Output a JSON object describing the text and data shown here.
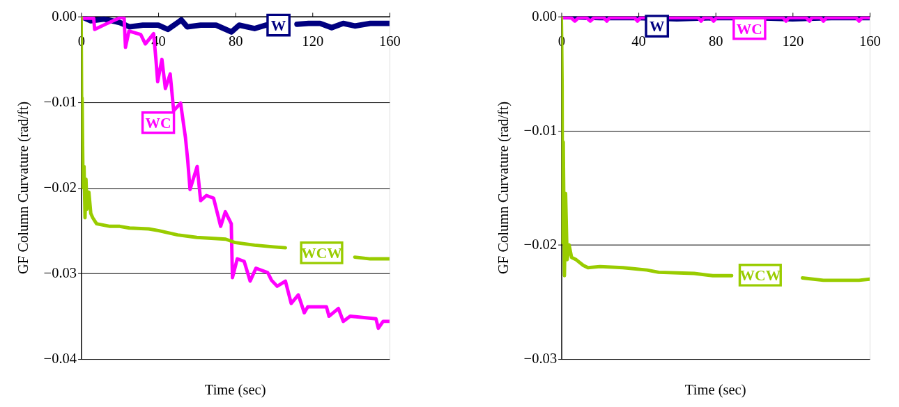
{
  "chart_data": [
    {
      "type": "line",
      "xlabel": "Time (sec)",
      "ylabel": "GF Column Curvature (rad/ft)",
      "xlim": [
        0,
        160
      ],
      "xticks": [
        0,
        40,
        80,
        120,
        160
      ],
      "ylim": [
        -0.04,
        0
      ],
      "yticks": [
        {
          "value": 0,
          "label": "0.00"
        },
        -0.01,
        -0.02,
        -0.03,
        -0.04
      ],
      "grid": "y",
      "legend": false,
      "marker": "none",
      "line_style": "solid",
      "series": [
        {
          "name": "W",
          "color": "#000080",
          "x": [
            0,
            5,
            12,
            20,
            25,
            32,
            40,
            45,
            52,
            55,
            62,
            70,
            78,
            82,
            90,
            96,
            98,
            112,
            118,
            124,
            130,
            136,
            142,
            150,
            160
          ],
          "values": [
            0,
            -0.0005,
            -0.0003,
            -0.0007,
            -0.0012,
            -0.001,
            -0.001,
            -0.0015,
            -0.0004,
            -0.0012,
            -0.001,
            -0.001,
            -0.0018,
            -0.001,
            -0.0014,
            -0.001,
            null,
            -0.0009,
            -0.0008,
            -0.0008,
            -0.0013,
            -0.0008,
            -0.0011,
            -0.0008,
            -0.0008
          ]
        },
        {
          "name": "WC",
          "color": "#ff00ff",
          "x": [
            0,
            0.4,
            6.5,
            7,
            12.6,
            20.5,
            22.3,
            23,
            24.8,
            30.9,
            33.3,
            37.6,
            38.8,
            39.7,
            41.9,
            43.7,
            46.2,
            48,
            51.6,
            54.1,
            55.3,
            56.5,
            60.2,
            62,
            65,
            68.7,
            72.4,
            74.8,
            77.9,
            78.5,
            81,
            84.6,
            87.7,
            90.7,
            96.8,
            98.8,
            101.7,
            106,
            109,
            112.7,
            115.8,
            117.6,
            127.3,
            128.6,
            133.5,
            136,
            139.6,
            153,
            154.2,
            156.7,
            160
          ],
          "values": [
            0,
            -0.0002,
            -0.0002,
            -0.0015,
            -0.0009,
            -0.0001,
            -0.0002,
            -0.0036,
            -0.0017,
            -0.0021,
            -0.0032,
            -0.002,
            -0.005,
            -0.0076,
            -0.005,
            -0.0084,
            -0.0067,
            -0.011,
            -0.0101,
            -0.0141,
            -0.0168,
            -0.0202,
            -0.0175,
            -0.0215,
            -0.0209,
            -0.0212,
            -0.0245,
            -0.0228,
            -0.0242,
            -0.0305,
            -0.0283,
            -0.0286,
            -0.0309,
            -0.0294,
            -0.0299,
            -0.0308,
            -0.0315,
            -0.0309,
            -0.0335,
            -0.0325,
            -0.0346,
            -0.0339,
            -0.0339,
            -0.035,
            -0.0341,
            -0.0356,
            -0.035,
            -0.0353,
            -0.0364,
            -0.0356,
            -0.0356
          ]
        },
        {
          "name": "WCW",
          "color": "#99cc00",
          "x": [
            0,
            0.3,
            0.5,
            1,
            1.5,
            2,
            2.5,
            3,
            4,
            5,
            6,
            8,
            15,
            20,
            25,
            35,
            40,
            50,
            60,
            75,
            80,
            90,
            100,
            106,
            108,
            142,
            150,
            160
          ],
          "values": [
            0,
            -0.012,
            -0.0095,
            -0.02,
            -0.0175,
            -0.0235,
            -0.019,
            -0.0225,
            -0.0205,
            -0.023,
            -0.0235,
            -0.0242,
            -0.0245,
            -0.0245,
            -0.0247,
            -0.0248,
            -0.025,
            -0.0255,
            -0.0258,
            -0.026,
            -0.0264,
            -0.0267,
            -0.0269,
            -0.027,
            null,
            -0.0281,
            -0.0283,
            -0.0283
          ]
        }
      ]
    },
    {
      "type": "line",
      "xlabel": "Time (sec)",
      "ylabel": "GF Column Curvature (rad/ft)",
      "xlim": [
        0,
        160
      ],
      "xticks": [
        0,
        40,
        80,
        120,
        160
      ],
      "ylim": [
        -0.03,
        0
      ],
      "yticks": [
        {
          "value": 0,
          "label": "0.00"
        },
        -0.01,
        -0.02,
        -0.03
      ],
      "grid": "y",
      "legend": false,
      "marker": "none",
      "line_style": "solid",
      "series": [
        {
          "name": "W",
          "color": "#000080",
          "x": [
            0,
            20,
            40,
            60,
            80,
            100,
            120,
            140,
            160
          ],
          "values": [
            0,
            -0.0001,
            -0.0001,
            -0.0002,
            -0.0001,
            -0.0001,
            -0.0002,
            -0.0001,
            -0.0001
          ]
        },
        {
          "name": "WC",
          "color": "#ff00ff",
          "x": [
            0,
            5,
            7,
            9,
            13,
            15,
            17,
            22,
            23.6,
            25,
            38,
            39.5,
            41,
            71,
            72.5,
            74,
            77.5,
            79,
            80.5,
            115,
            116.6,
            118,
            127,
            128.8,
            130,
            134.5,
            136,
            137.5,
            153,
            154.5,
            156,
            160
          ],
          "values": [
            -0.0001,
            -0.0001,
            -0.0004,
            -0.0001,
            -0.0001,
            -0.0004,
            -0.0001,
            -0.0001,
            -0.0004,
            -0.0001,
            -0.0001,
            -0.0004,
            -0.0001,
            -0.0001,
            -0.0004,
            -0.0001,
            -0.0001,
            -0.0004,
            -0.0001,
            -0.0001,
            -0.0004,
            -0.0001,
            -0.0001,
            -0.0004,
            -0.0001,
            -0.0001,
            -0.0004,
            -0.0001,
            -0.0001,
            -0.0004,
            -0.0001,
            -0.0001
          ]
        },
        {
          "name": "WCW",
          "color": "#99cc00",
          "x": [
            0,
            0.2,
            0.4,
            0.6,
            1,
            1.6,
            2.2,
            3,
            4,
            5.3,
            7.7,
            11.4,
            13.8,
            20,
            32,
            44.4,
            50.5,
            68.9,
            78.6,
            88.4,
            100,
            125.1,
            136,
            154.5,
            160
          ],
          "values": [
            0,
            -0.0025,
            -0.0061,
            -0.0198,
            -0.011,
            -0.0227,
            -0.0155,
            -0.0213,
            -0.02,
            -0.0211,
            -0.0213,
            -0.0218,
            -0.022,
            -0.0219,
            -0.022,
            -0.0222,
            -0.0224,
            -0.0225,
            -0.0227,
            -0.0227,
            null,
            -0.0229,
            -0.0231,
            -0.0231,
            -0.023
          ]
        }
      ]
    }
  ]
}
